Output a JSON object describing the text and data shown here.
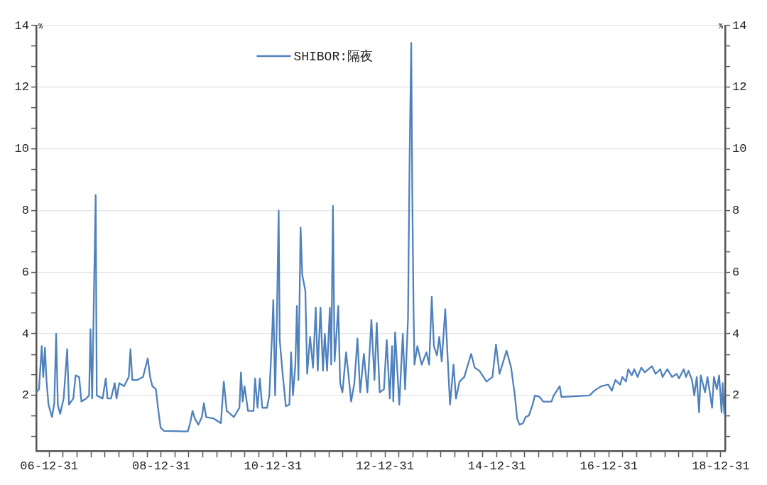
{
  "chart_data": {
    "type": "line",
    "ylabel": "%",
    "y2label": "%",
    "x": [
      "2006-10-09",
      "2006-10-26",
      "2006-11-13",
      "2006-11-23",
      "2006-12-04",
      "2006-12-14",
      "2006-12-27",
      "2007-01-19",
      "2007-02-03",
      "2007-02-15",
      "2007-02-26",
      "2007-03-13",
      "2007-04-05",
      "2007-04-28",
      "2007-05-10",
      "2007-06-07",
      "2007-06-22",
      "2007-07-15",
      "2007-07-30",
      "2007-08-30",
      "2007-09-18",
      "2007-09-27",
      "2007-10-08",
      "2007-10-31",
      "2007-11-07",
      "2007-12-15",
      "2008-01-05",
      "2008-01-16",
      "2008-02-08",
      "2008-03-03",
      "2008-03-15",
      "2008-04-02",
      "2008-05-03",
      "2008-06-03",
      "2008-06-14",
      "2008-06-26",
      "2008-07-27",
      "2008-09-04",
      "2008-10-05",
      "2008-10-20",
      "2008-11-04",
      "2008-11-27",
      "2008-12-13",
      "2008-12-28",
      "2009-01-20",
      "2009-06-23",
      "2009-07-08",
      "2009-07-24",
      "2009-08-08",
      "2009-08-31",
      "2009-09-23",
      "2009-10-06",
      "2009-10-21",
      "2009-12-10",
      "2010-01-25",
      "2010-02-13",
      "2010-03-04",
      "2010-04-20",
      "2010-05-26",
      "2010-06-05",
      "2010-06-16",
      "2010-06-28",
      "2010-07-21",
      "2010-08-26",
      "2010-09-05",
      "2010-09-21",
      "2010-10-06",
      "2010-10-22",
      "2010-11-22",
      "2010-12-07",
      "2010-12-27",
      "2011-01-02",
      "2011-01-14",
      "2011-01-25",
      "2011-02-06",
      "2011-02-13",
      "2011-03-02",
      "2011-03-25",
      "2011-04-17",
      "2011-04-28",
      "2011-05-10",
      "2011-05-26",
      "2011-06-05",
      "2011-06-15",
      "2011-06-29",
      "2011-07-10",
      "2011-07-30",
      "2011-08-11",
      "2011-08-30",
      "2011-09-18",
      "2011-10-06",
      "2011-10-19",
      "2011-11-06",
      "2011-11-22",
      "2011-12-04",
      "2011-12-19",
      "2012-01-06",
      "2012-01-15",
      "2012-01-26",
      "2012-02-06",
      "2012-03-01",
      "2012-03-13",
      "2012-03-28",
      "2012-04-21",
      "2012-05-06",
      "2012-05-24",
      "2012-06-14",
      "2012-07-04",
      "2012-07-22",
      "2012-08-15",
      "2012-09-07",
      "2012-10-03",
      "2012-10-23",
      "2012-11-07",
      "2012-11-26",
      "2012-12-24",
      "2013-01-11",
      "2013-01-31",
      "2013-02-15",
      "2013-02-23",
      "2013-03-07",
      "2013-04-03",
      "2013-04-26",
      "2013-05-11",
      "2013-05-30",
      "2013-06-09",
      "2013-06-20",
      "2013-06-27",
      "2013-07-05",
      "2013-07-11",
      "2013-07-30",
      "2013-08-27",
      "2013-09-27",
      "2013-10-15",
      "2013-11-01",
      "2013-11-15",
      "2013-12-05",
      "2013-12-20",
      "2014-01-05",
      "2014-01-28",
      "2014-02-15",
      "2014-02-28",
      "2014-03-23",
      "2014-04-08",
      "2014-05-01",
      "2014-06-01",
      "2014-07-16",
      "2014-08-08",
      "2014-09-08",
      "2014-10-24",
      "2014-12-02",
      "2014-12-25",
      "2015-01-17",
      "2015-03-04",
      "2015-04-03",
      "2015-04-27",
      "2015-05-12",
      "2015-05-28",
      "2015-06-20",
      "2015-07-06",
      "2015-07-28",
      "2015-08-21",
      "2015-09-05",
      "2015-10-06",
      "2015-10-29",
      "2015-12-22",
      "2016-01-06",
      "2016-02-14",
      "2016-02-25",
      "2016-08-26",
      "2016-09-26",
      "2016-11-11",
      "2016-12-27",
      "2017-01-19",
      "2017-02-11",
      "2017-03-14",
      "2017-03-29",
      "2017-04-21",
      "2017-05-06",
      "2017-05-29",
      "2017-06-14",
      "2017-07-06",
      "2017-07-30",
      "2017-08-22",
      "2017-10-08",
      "2017-10-31",
      "2017-12-01",
      "2017-12-16",
      "2018-01-16",
      "2018-02-16",
      "2018-03-18",
      "2018-04-02",
      "2018-05-03",
      "2018-05-18",
      "2018-06-03",
      "2018-06-26",
      "2018-07-11",
      "2018-07-27",
      "2018-08-11",
      "2018-08-22",
      "2018-09-19",
      "2018-10-05",
      "2018-11-04",
      "2018-11-16",
      "2018-12-05",
      "2018-12-20",
      "2019-01-05",
      "2019-01-12",
      "2019-01-23"
    ],
    "series": [
      {
        "name": "SHIBOR:隔夜",
        "color": "#4f81bd",
        "values": [
          2.1,
          2.2,
          3.6,
          2.6,
          3.55,
          2.5,
          1.7,
          1.3,
          1.75,
          4.0,
          1.7,
          1.4,
          1.9,
          3.5,
          1.7,
          1.9,
          2.65,
          2.6,
          1.8,
          1.9,
          2.0,
          4.15,
          1.9,
          8.5,
          2.0,
          1.9,
          2.55,
          1.9,
          1.9,
          2.4,
          1.9,
          2.4,
          2.3,
          2.6,
          3.5,
          2.5,
          2.5,
          2.6,
          3.2,
          2.6,
          2.3,
          2.2,
          1.5,
          0.95,
          0.85,
          0.83,
          1.1,
          1.5,
          1.25,
          1.05,
          1.3,
          1.75,
          1.3,
          1.25,
          1.1,
          2.45,
          1.5,
          1.3,
          1.6,
          2.75,
          1.8,
          2.3,
          1.5,
          1.5,
          2.55,
          1.6,
          2.55,
          1.6,
          1.6,
          2.0,
          4.2,
          5.1,
          2.0,
          4.4,
          8.0,
          3.8,
          2.8,
          1.65,
          1.7,
          3.4,
          2.0,
          3.0,
          4.9,
          2.5,
          7.45,
          5.9,
          5.4,
          2.7,
          3.9,
          2.9,
          4.85,
          2.8,
          4.85,
          2.8,
          4.0,
          2.8,
          4.85,
          3.0,
          8.15,
          3.1,
          4.9,
          2.4,
          2.1,
          3.4,
          2.7,
          1.8,
          2.4,
          3.85,
          2.1,
          3.35,
          2.1,
          4.45,
          2.5,
          4.35,
          2.1,
          2.2,
          3.8,
          1.9,
          3.6,
          1.8,
          4.05,
          1.7,
          4.0,
          2.2,
          4.5,
          9.55,
          13.44,
          8.46,
          4.8,
          3.0,
          3.6,
          3.0,
          3.4,
          3.0,
          5.2,
          3.6,
          3.3,
          3.9,
          3.1,
          4.8,
          3.0,
          1.7,
          3.0,
          1.9,
          2.45,
          2.6,
          3.35,
          2.9,
          2.8,
          2.45,
          2.6,
          3.65,
          2.7,
          3.45,
          2.9,
          2.0,
          1.25,
          1.05,
          1.1,
          1.3,
          1.35,
          1.7,
          2.0,
          1.95,
          1.8,
          1.8,
          2.0,
          2.3,
          1.95,
          2.0,
          2.15,
          2.3,
          2.35,
          2.15,
          2.5,
          2.35,
          2.6,
          2.45,
          2.85,
          2.65,
          2.85,
          2.6,
          2.9,
          2.75,
          2.95,
          2.7,
          2.85,
          2.6,
          2.85,
          2.6,
          2.7,
          2.55,
          2.85,
          2.6,
          2.8,
          2.5,
          2.0,
          2.6,
          1.45,
          2.65,
          2.1,
          2.6,
          1.6,
          2.6,
          2.2,
          2.65,
          1.45,
          2.4,
          1.4
        ]
      }
    ],
    "xlim": [
      "2006-10-08",
      "2019-01-28"
    ],
    "xticks": [
      {
        "value": "2006-12-31",
        "label": "06-12-31"
      },
      {
        "value": "2007-03-31",
        "label": null
      },
      {
        "value": "2007-06-30",
        "label": null
      },
      {
        "value": "2007-09-30",
        "label": null
      },
      {
        "value": "2007-12-31",
        "label": null
      },
      {
        "value": "2008-03-31",
        "label": null
      },
      {
        "value": "2008-06-30",
        "label": null
      },
      {
        "value": "2008-09-30",
        "label": null
      },
      {
        "value": "2008-12-31",
        "label": "08-12-31"
      },
      {
        "value": "2009-03-31",
        "label": null
      },
      {
        "value": "2009-06-30",
        "label": null
      },
      {
        "value": "2009-09-30",
        "label": null
      },
      {
        "value": "2009-12-31",
        "label": null
      },
      {
        "value": "2010-03-31",
        "label": null
      },
      {
        "value": "2010-06-30",
        "label": null
      },
      {
        "value": "2010-09-30",
        "label": null
      },
      {
        "value": "2010-12-31",
        "label": "10-12-31"
      },
      {
        "value": "2011-03-31",
        "label": null
      },
      {
        "value": "2011-06-30",
        "label": null
      },
      {
        "value": "2011-09-30",
        "label": null
      },
      {
        "value": "2011-12-31",
        "label": null
      },
      {
        "value": "2012-03-31",
        "label": null
      },
      {
        "value": "2012-06-30",
        "label": null
      },
      {
        "value": "2012-09-30",
        "label": null
      },
      {
        "value": "2012-12-31",
        "label": "12-12-31"
      },
      {
        "value": "2013-03-31",
        "label": null
      },
      {
        "value": "2013-06-30",
        "label": null
      },
      {
        "value": "2013-09-30",
        "label": null
      },
      {
        "value": "2013-12-31",
        "label": null
      },
      {
        "value": "2014-03-31",
        "label": null
      },
      {
        "value": "2014-06-30",
        "label": null
      },
      {
        "value": "2014-09-30",
        "label": null
      },
      {
        "value": "2014-12-31",
        "label": "14-12-31"
      },
      {
        "value": "2015-03-31",
        "label": null
      },
      {
        "value": "2015-06-30",
        "label": null
      },
      {
        "value": "2015-09-30",
        "label": null
      },
      {
        "value": "2015-12-31",
        "label": null
      },
      {
        "value": "2016-03-31",
        "label": null
      },
      {
        "value": "2016-06-30",
        "label": null
      },
      {
        "value": "2016-09-30",
        "label": null
      },
      {
        "value": "2016-12-31",
        "label": "16-12-31"
      },
      {
        "value": "2017-03-31",
        "label": null
      },
      {
        "value": "2017-06-30",
        "label": null
      },
      {
        "value": "2017-09-30",
        "label": null
      },
      {
        "value": "2017-12-31",
        "label": null
      },
      {
        "value": "2018-03-31",
        "label": null
      },
      {
        "value": "2018-06-30",
        "label": null
      },
      {
        "value": "2018-09-30",
        "label": null
      },
      {
        "value": "2018-12-31",
        "label": "18-12-31"
      }
    ],
    "ylim": [
      0.2,
      14
    ],
    "yticks": [
      {
        "value": 0.67,
        "label": null
      },
      {
        "value": 1.33,
        "label": null
      },
      2,
      {
        "value": 2.67,
        "label": null
      },
      {
        "value": 3.33,
        "label": null
      },
      4,
      {
        "value": 4.67,
        "label": null
      },
      {
        "value": 5.33,
        "label": null
      },
      6,
      {
        "value": 6.67,
        "label": null
      },
      {
        "value": 7.33,
        "label": null
      },
      8,
      {
        "value": 8.67,
        "label": null
      },
      {
        "value": 9.33,
        "label": null
      },
      10,
      {
        "value": 10.67,
        "label": null
      },
      {
        "value": 11.33,
        "label": null
      },
      12,
      {
        "value": 12.67,
        "label": null
      },
      {
        "value": 13.33,
        "label": null
      },
      14
    ],
    "y2lim": [
      0.2,
      14
    ],
    "y2ticks": [
      {
        "value": 0.67,
        "label": null
      },
      {
        "value": 1.33,
        "label": null
      },
      2,
      {
        "value": 2.67,
        "label": null
      },
      {
        "value": 3.33,
        "label": null
      },
      4,
      {
        "value": 4.67,
        "label": null
      },
      {
        "value": 5.33,
        "label": null
      },
      6,
      {
        "value": 6.67,
        "label": null
      },
      {
        "value": 7.33,
        "label": null
      },
      8,
      {
        "value": 8.67,
        "label": null
      },
      {
        "value": 9.33,
        "label": null
      },
      10,
      {
        "value": 10.67,
        "label": null
      },
      {
        "value": 11.33,
        "label": null
      },
      12,
      {
        "value": 12.67,
        "label": null
      },
      {
        "value": 13.33,
        "label": null
      },
      14
    ],
    "grid": "y",
    "legend": "top left",
    "marker": "none",
    "line_style": "solid"
  }
}
